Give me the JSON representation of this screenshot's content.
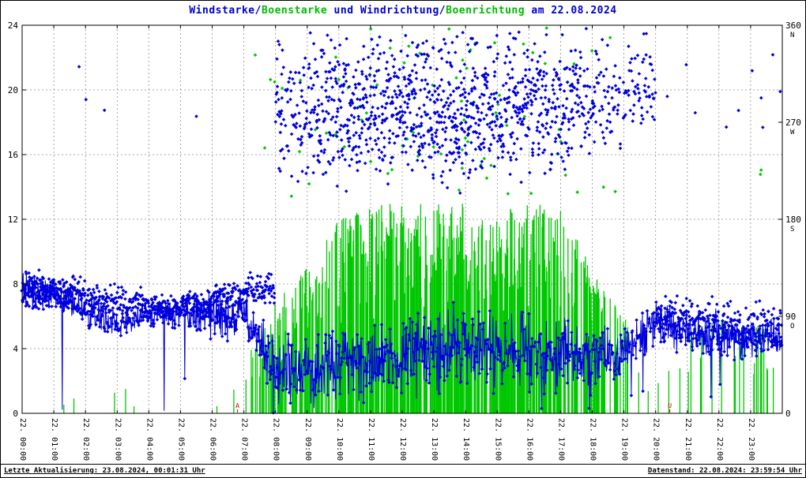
{
  "window": {
    "background": "#ffffff",
    "border_color": "#000000"
  },
  "title": {
    "segments": [
      {
        "text": "Windstarke/",
        "color": "#0000cc"
      },
      {
        "text": "Boenstarke",
        "color": "#00bb00"
      },
      {
        "text": " und Windrichtung/",
        "color": "#0000cc"
      },
      {
        "text": "Boenrichtung",
        "color": "#00bb00"
      },
      {
        "text": " am 22.08.2024",
        "color": "#0000cc"
      }
    ]
  },
  "footer": {
    "left": "Letzte Aktualisierung: 23.08.2024, 00:01:31 Uhr",
    "right": "Datenstand: 22.08.2024: 23:59:54 Uhr"
  },
  "chart_data": {
    "type": "scatter",
    "title": "Windstarke/Boenstarke und Windrichtung/Boenrichtung am 22.08.2024",
    "grid": "dashed",
    "x_axis": {
      "hours": 24,
      "labels": [
        "22. 00:00",
        "22. 01:00",
        "22. 02:00",
        "22. 03:00",
        "22. 04:00",
        "22. 05:00",
        "22. 06:00",
        "22. 07:00",
        "22. 08:00",
        "22. 09:00",
        "22. 10:00",
        "22. 11:00",
        "22. 12:00",
        "22. 13:00",
        "22. 14:00",
        "22. 15:00",
        "22. 16:00",
        "22. 17:00",
        "22. 18:00",
        "22. 19:00",
        "22. 20:00",
        "22. 21:00",
        "22. 22:00",
        "22. 23:00"
      ]
    },
    "y_left": {
      "ticks": [
        0,
        4,
        8,
        12,
        16,
        20,
        24
      ],
      "range": [
        0,
        24
      ]
    },
    "y_right": {
      "ticks": [
        0,
        90,
        180,
        270,
        360
      ],
      "range": [
        0,
        360
      ],
      "compass": [
        {
          "value": 360,
          "label": "N"
        },
        {
          "value": 270,
          "label": "W"
        },
        {
          "value": 180,
          "label": "S"
        },
        {
          "value": 90,
          "label": "O"
        }
      ]
    },
    "sun_markers": [
      {
        "label": "A",
        "hour": 6.8,
        "color": "#dd0000"
      },
      {
        "label": "U",
        "hour": 20.45,
        "color": "#dd0000"
      }
    ],
    "series": [
      {
        "id": "windstaerke",
        "name": "Windstarke",
        "color": "#0000dd",
        "style": "line+markers",
        "marker_p": 0.7,
        "hourly_lo": [
          6.5,
          6.3,
          5.0,
          4.5,
          5.2,
          5.0,
          4.0,
          4.5,
          0.5,
          0.5,
          0.5,
          0.5,
          0.8,
          1.0,
          1.0,
          1.0,
          1.0,
          1.0,
          1.5,
          2.0,
          4.0,
          3.5,
          3.0,
          3.0
        ],
        "hourly_hi": [
          9.0,
          8.5,
          7.8,
          6.5,
          7.0,
          7.5,
          7.8,
          8.0,
          5.2,
          5.0,
          5.8,
          6.0,
          6.5,
          7.0,
          7.0,
          6.5,
          6.5,
          6.0,
          6.0,
          6.0,
          7.0,
          6.5,
          6.5,
          6.0
        ]
      },
      {
        "id": "boenstaerke",
        "name": "Boenstarke",
        "color": "#00c800",
        "style": "impulse",
        "hourly_lo": [
          0,
          0,
          0.5,
          0.8,
          0,
          0,
          0,
          1.5,
          2,
          3,
          4,
          4.5,
          5,
          5,
          5.5,
          5,
          5,
          4.5,
          3.5,
          2,
          0.8,
          1,
          2,
          2
        ],
        "hourly_hi": [
          0,
          0,
          2,
          2.2,
          0,
          0,
          0,
          3,
          7,
          9,
          12,
          13,
          13,
          13,
          13,
          12.5,
          13,
          13,
          9,
          6,
          2,
          5,
          6,
          5.5
        ],
        "hourly_p": [
          0,
          0,
          0.04,
          0.06,
          0,
          0,
          0,
          0.1,
          0.5,
          0.55,
          0.6,
          0.62,
          0.62,
          0.66,
          0.66,
          0.62,
          0.62,
          0.6,
          0.45,
          0.18,
          0.04,
          0.08,
          0.14,
          0.16
        ]
      },
      {
        "id": "windrichtung",
        "name": "Windrichtung",
        "color": "#0000dd",
        "style": "scatter",
        "hourly_lo": [
          95,
          95,
          90,
          88,
          85,
          88,
          95,
          100,
          200,
          205,
          200,
          205,
          200,
          200,
          205,
          210,
          215,
          220,
          235,
          255,
          70,
          62,
          58,
          55
        ],
        "hourly_hi": [
          135,
          130,
          122,
          118,
          112,
          115,
          125,
          132,
          360,
          360,
          360,
          360,
          360,
          360,
          360,
          360,
          360,
          360,
          360,
          360,
          112,
          110,
          108,
          105
        ],
        "hourly_density": [
          1.5,
          1.5,
          1.3,
          1.0,
          1.1,
          1.1,
          1.2,
          1.2,
          1.3,
          1.5,
          1.8,
          1.9,
          1.9,
          2.1,
          2.1,
          1.9,
          1.9,
          1.8,
          1.3,
          0.8,
          1.2,
          1.0,
          1.0,
          1.0
        ],
        "hourly_spike_p": [
          0,
          0,
          0.03,
          0.03,
          0,
          0,
          0.01,
          0.01,
          0,
          0,
          0,
          0,
          0,
          0,
          0,
          0,
          0,
          0,
          0,
          0,
          0.01,
          0.04,
          0.04,
          0.05
        ]
      },
      {
        "id": "boenrichtung",
        "name": "Boenrichtung",
        "color": "#00c800",
        "style": "scatter",
        "range": [
          200,
          360
        ],
        "hourly_p": [
          0,
          0,
          0,
          0,
          0,
          0,
          0,
          0.05,
          0.2,
          0.2,
          0.25,
          0.25,
          0.25,
          0.28,
          0.28,
          0.25,
          0.25,
          0.2,
          0.12,
          0.06,
          0,
          0.04,
          0.06,
          0.06
        ]
      }
    ]
  }
}
